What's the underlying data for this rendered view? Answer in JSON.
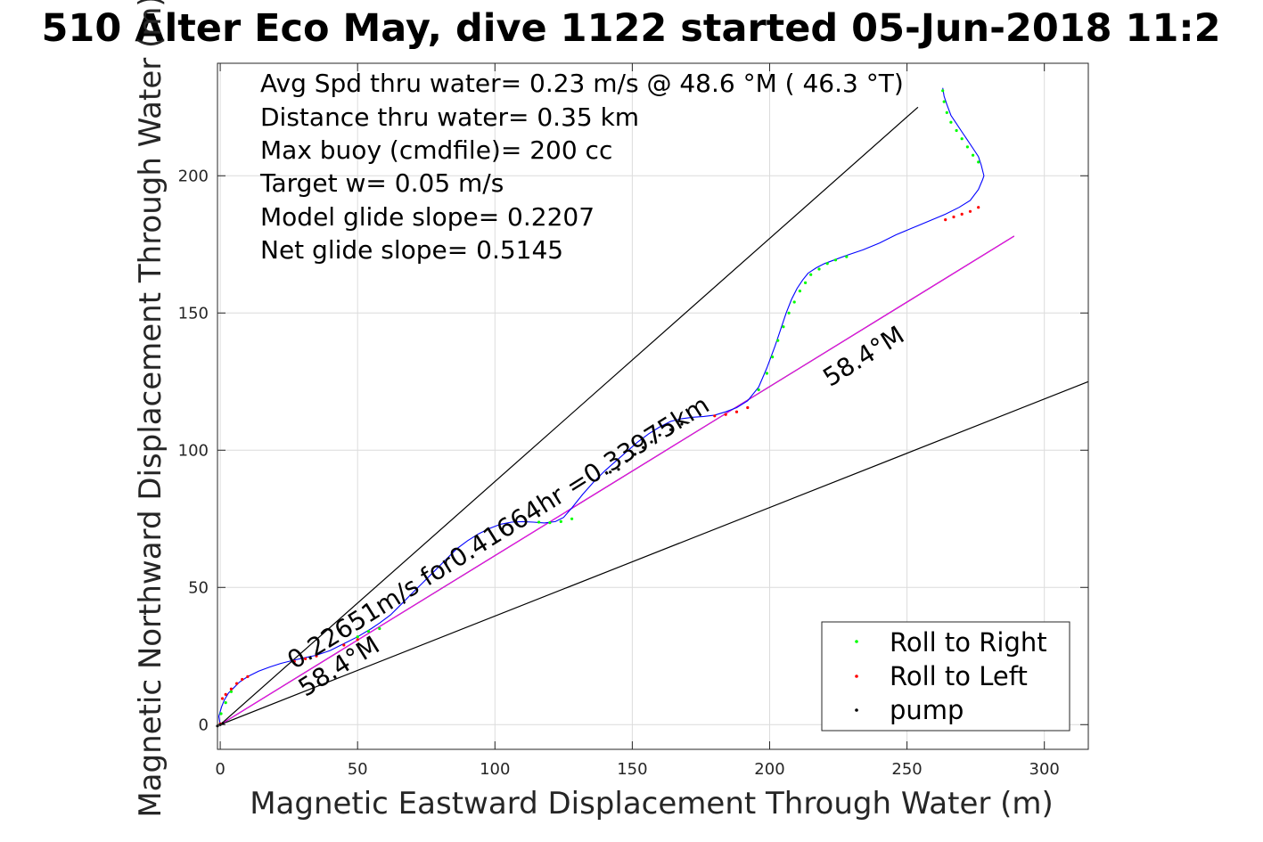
{
  "chart_data": {
    "type": "line",
    "title": "510 Alter Eco May, dive 1122 started 05-Jun-2018 11:2",
    "xlabel": "Magnetic Eastward Displacement Through Water (m)",
    "ylabel": "Magnetic Northward Displacement Through Water (m)",
    "xlim": [
      -1,
      316
    ],
    "ylim": [
      -9,
      241
    ],
    "xticks": [
      0,
      50,
      100,
      150,
      200,
      250,
      300
    ],
    "xtick_labels": [
      "0",
      "50",
      "100",
      "150",
      "200",
      "250",
      "300"
    ],
    "yticks": [
      0,
      50,
      100,
      150,
      200
    ],
    "ytick_labels": [
      "0",
      "50",
      "100",
      "150",
      "200"
    ],
    "grid": true,
    "info_lines": [
      "Avg Spd thru water=  0.23 m/s @  48.6 °M ( 46.3 °T)",
      "Distance thru water=  0.35 km",
      "Max buoy (cmdfile)= 200 cc",
      "Target w= 0.05 m/s",
      "Model glide slope= 0.2207",
      "Net glide slope= 0.5145"
    ],
    "annotations": [
      {
        "text": "0.22651m/s for0.41664hr =0.33975km",
        "x": 27,
        "y": 20,
        "angle_deg": -32
      },
      {
        "text": "58.4°M",
        "x": 31,
        "y": 10,
        "angle_deg": -32
      },
      {
        "text": "58.4°M",
        "x": 222,
        "y": 123,
        "angle_deg": -32
      }
    ],
    "reference_lines": [
      {
        "name": "heading-line-upper",
        "x": [
          0,
          254
        ],
        "y": [
          0,
          225
        ]
      },
      {
        "name": "heading-line-center",
        "x": [
          0,
          289
        ],
        "y": [
          0,
          178
        ]
      },
      {
        "name": "heading-line-lower",
        "x": [
          0,
          316
        ],
        "y": [
          0,
          125
        ]
      }
    ],
    "series": [
      {
        "name": "track",
        "color": "#0000ff",
        "x": [
          0,
          -0.5,
          0.5,
          1.5,
          3,
          5,
          7,
          10,
          14,
          18,
          22,
          26,
          30,
          35,
          40,
          45,
          50,
          55,
          58,
          62,
          66,
          70,
          74,
          78,
          82,
          86,
          90,
          94,
          98,
          102,
          106,
          110,
          114,
          118,
          122,
          125,
          128,
          132,
          136,
          140,
          144,
          148,
          152,
          156,
          160,
          164,
          168,
          172,
          176,
          180,
          184,
          188,
          192,
          196,
          199,
          202,
          204,
          206,
          208,
          210,
          212,
          214,
          217,
          220,
          224,
          228,
          234,
          240,
          246,
          252,
          258,
          264,
          269,
          273,
          276,
          277.5,
          278,
          277,
          276,
          274,
          272,
          270,
          268,
          266,
          264.5,
          263.5,
          263
        ],
        "y": [
          0,
          3,
          6.5,
          9,
          11.5,
          13.5,
          15.5,
          17.5,
          19.5,
          21,
          22.3,
          23.3,
          24.2,
          25.3,
          27,
          29.5,
          32,
          35,
          37,
          40,
          44,
          48,
          52,
          56,
          60,
          64,
          67,
          69.5,
          71.5,
          73,
          73.8,
          74,
          73.8,
          73.5,
          74,
          75.5,
          79,
          84,
          88.5,
          92.5,
          96,
          99.5,
          103,
          106,
          108.5,
          110.5,
          111.5,
          112,
          112.3,
          112.8,
          114,
          115.5,
          118,
          123,
          130,
          138,
          144,
          150,
          155,
          159,
          162,
          164.5,
          166.5,
          168,
          169.5,
          171,
          173,
          175.5,
          178.5,
          181,
          183.5,
          186,
          188.5,
          191,
          195,
          198.5,
          200,
          204,
          207,
          210,
          213,
          216,
          219,
          222,
          226,
          229,
          232
        ]
      }
    ],
    "marker_series": [
      {
        "name": "Roll to Right",
        "color": "#00ff00",
        "x": [
          0.3,
          2,
          4,
          50,
          54,
          58,
          116,
          120,
          124,
          128,
          196,
          199,
          201,
          203,
          205,
          207,
          209,
          211,
          213,
          215,
          218,
          221,
          224,
          228,
          276,
          274,
          272,
          270,
          268,
          266,
          264.5,
          263.5,
          263
        ],
        "y": [
          4,
          8,
          12,
          32,
          34,
          35,
          73.8,
          73.6,
          74,
          75,
          122,
          128,
          134,
          140,
          145,
          150,
          154,
          158,
          161,
          164,
          166,
          168,
          169.3,
          170.5,
          205,
          207.5,
          210.5,
          213.5,
          216.5,
          219.5,
          223,
          227,
          231
        ]
      },
      {
        "name": "Roll to Left",
        "color": "#ff0000",
        "x": [
          0,
          0.8,
          2,
          4,
          6,
          8,
          10,
          27,
          31,
          35,
          45,
          50,
          180,
          184,
          188,
          192,
          264,
          267,
          270,
          273,
          276
        ],
        "y": [
          0.3,
          9.5,
          11,
          13,
          15,
          16.5,
          17.5,
          23,
          24,
          25,
          29,
          31,
          112.5,
          113,
          114,
          115.5,
          184,
          185,
          186,
          187,
          188.5
        ]
      },
      {
        "name": "pump",
        "color": "#000000",
        "x": [
          -1,
          0,
          1,
          142,
          145,
          148,
          151,
          154,
          157,
          160,
          164,
          168
        ],
        "y": [
          -0.5,
          0,
          0.5,
          92,
          93,
          96,
          98.5,
          101,
          103,
          105.5,
          107.5,
          109.5
        ]
      }
    ],
    "legend": {
      "placement": "bottom-right",
      "entries": [
        {
          "label": "Roll to Right",
          "color": "#00ff00"
        },
        {
          "label": "Roll to Left",
          "color": "#ff0000"
        },
        {
          "label": "pump",
          "color": "#000000"
        }
      ]
    },
    "colors": {
      "track": "#0000ff",
      "heading_ref": "#ff00ff",
      "grid": "#dcdcdc",
      "axes": "#262626",
      "roll_right": "#00ff00",
      "roll_left": "#ff0000",
      "pump": "#000000"
    }
  }
}
